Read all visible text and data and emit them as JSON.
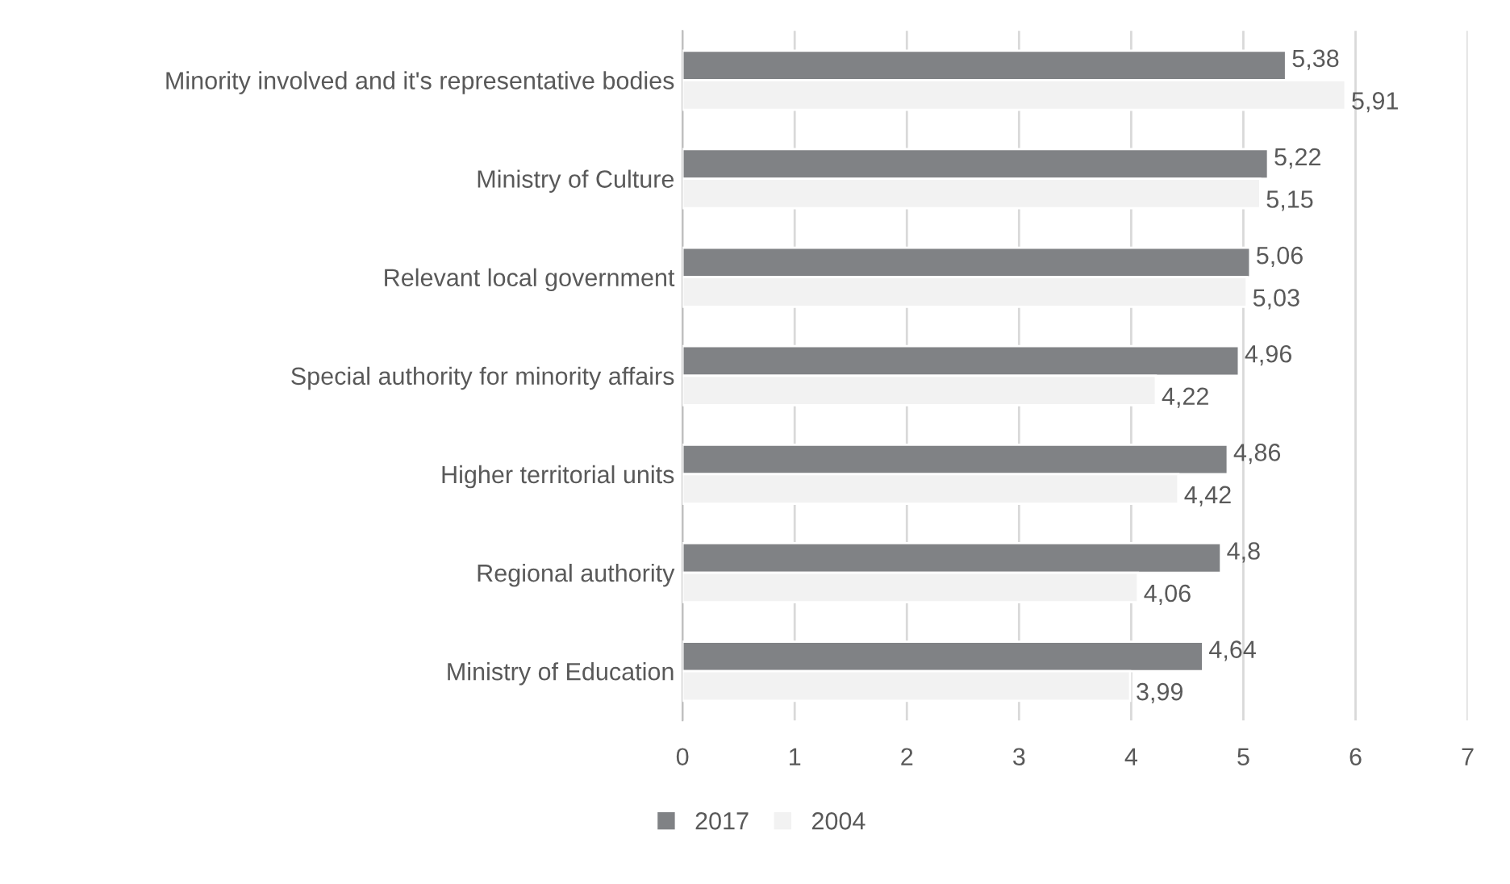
{
  "chart_data": {
    "type": "bar",
    "orientation": "horizontal",
    "categories": [
      "Minority involved and it's representative bodies",
      "Ministry of Culture",
      "Relevant local government",
      "Special authority for minority affairs",
      "Higher territorial units",
      "Regional authority",
      "Ministry of Education"
    ],
    "series": [
      {
        "name": "2017",
        "color": "#808285",
        "values": [
          5.38,
          5.22,
          5.06,
          4.96,
          4.86,
          4.8,
          4.64
        ],
        "value_labels": [
          "5,38",
          "5,22",
          "5,06",
          "4,96",
          "4,86",
          "4,8",
          "4,64"
        ]
      },
      {
        "name": "2004",
        "color": "#f2f2f2",
        "values": [
          5.91,
          5.15,
          5.03,
          4.22,
          4.42,
          4.06,
          3.99
        ],
        "value_labels": [
          "5,91",
          "5,15",
          "5,03",
          "4,22",
          "4,42",
          "4,06",
          "3,99"
        ]
      }
    ],
    "xlim": [
      0,
      7
    ],
    "xticks": [
      0,
      1,
      2,
      3,
      4,
      5,
      6,
      7
    ],
    "grid": "x",
    "legend": "bottom"
  }
}
